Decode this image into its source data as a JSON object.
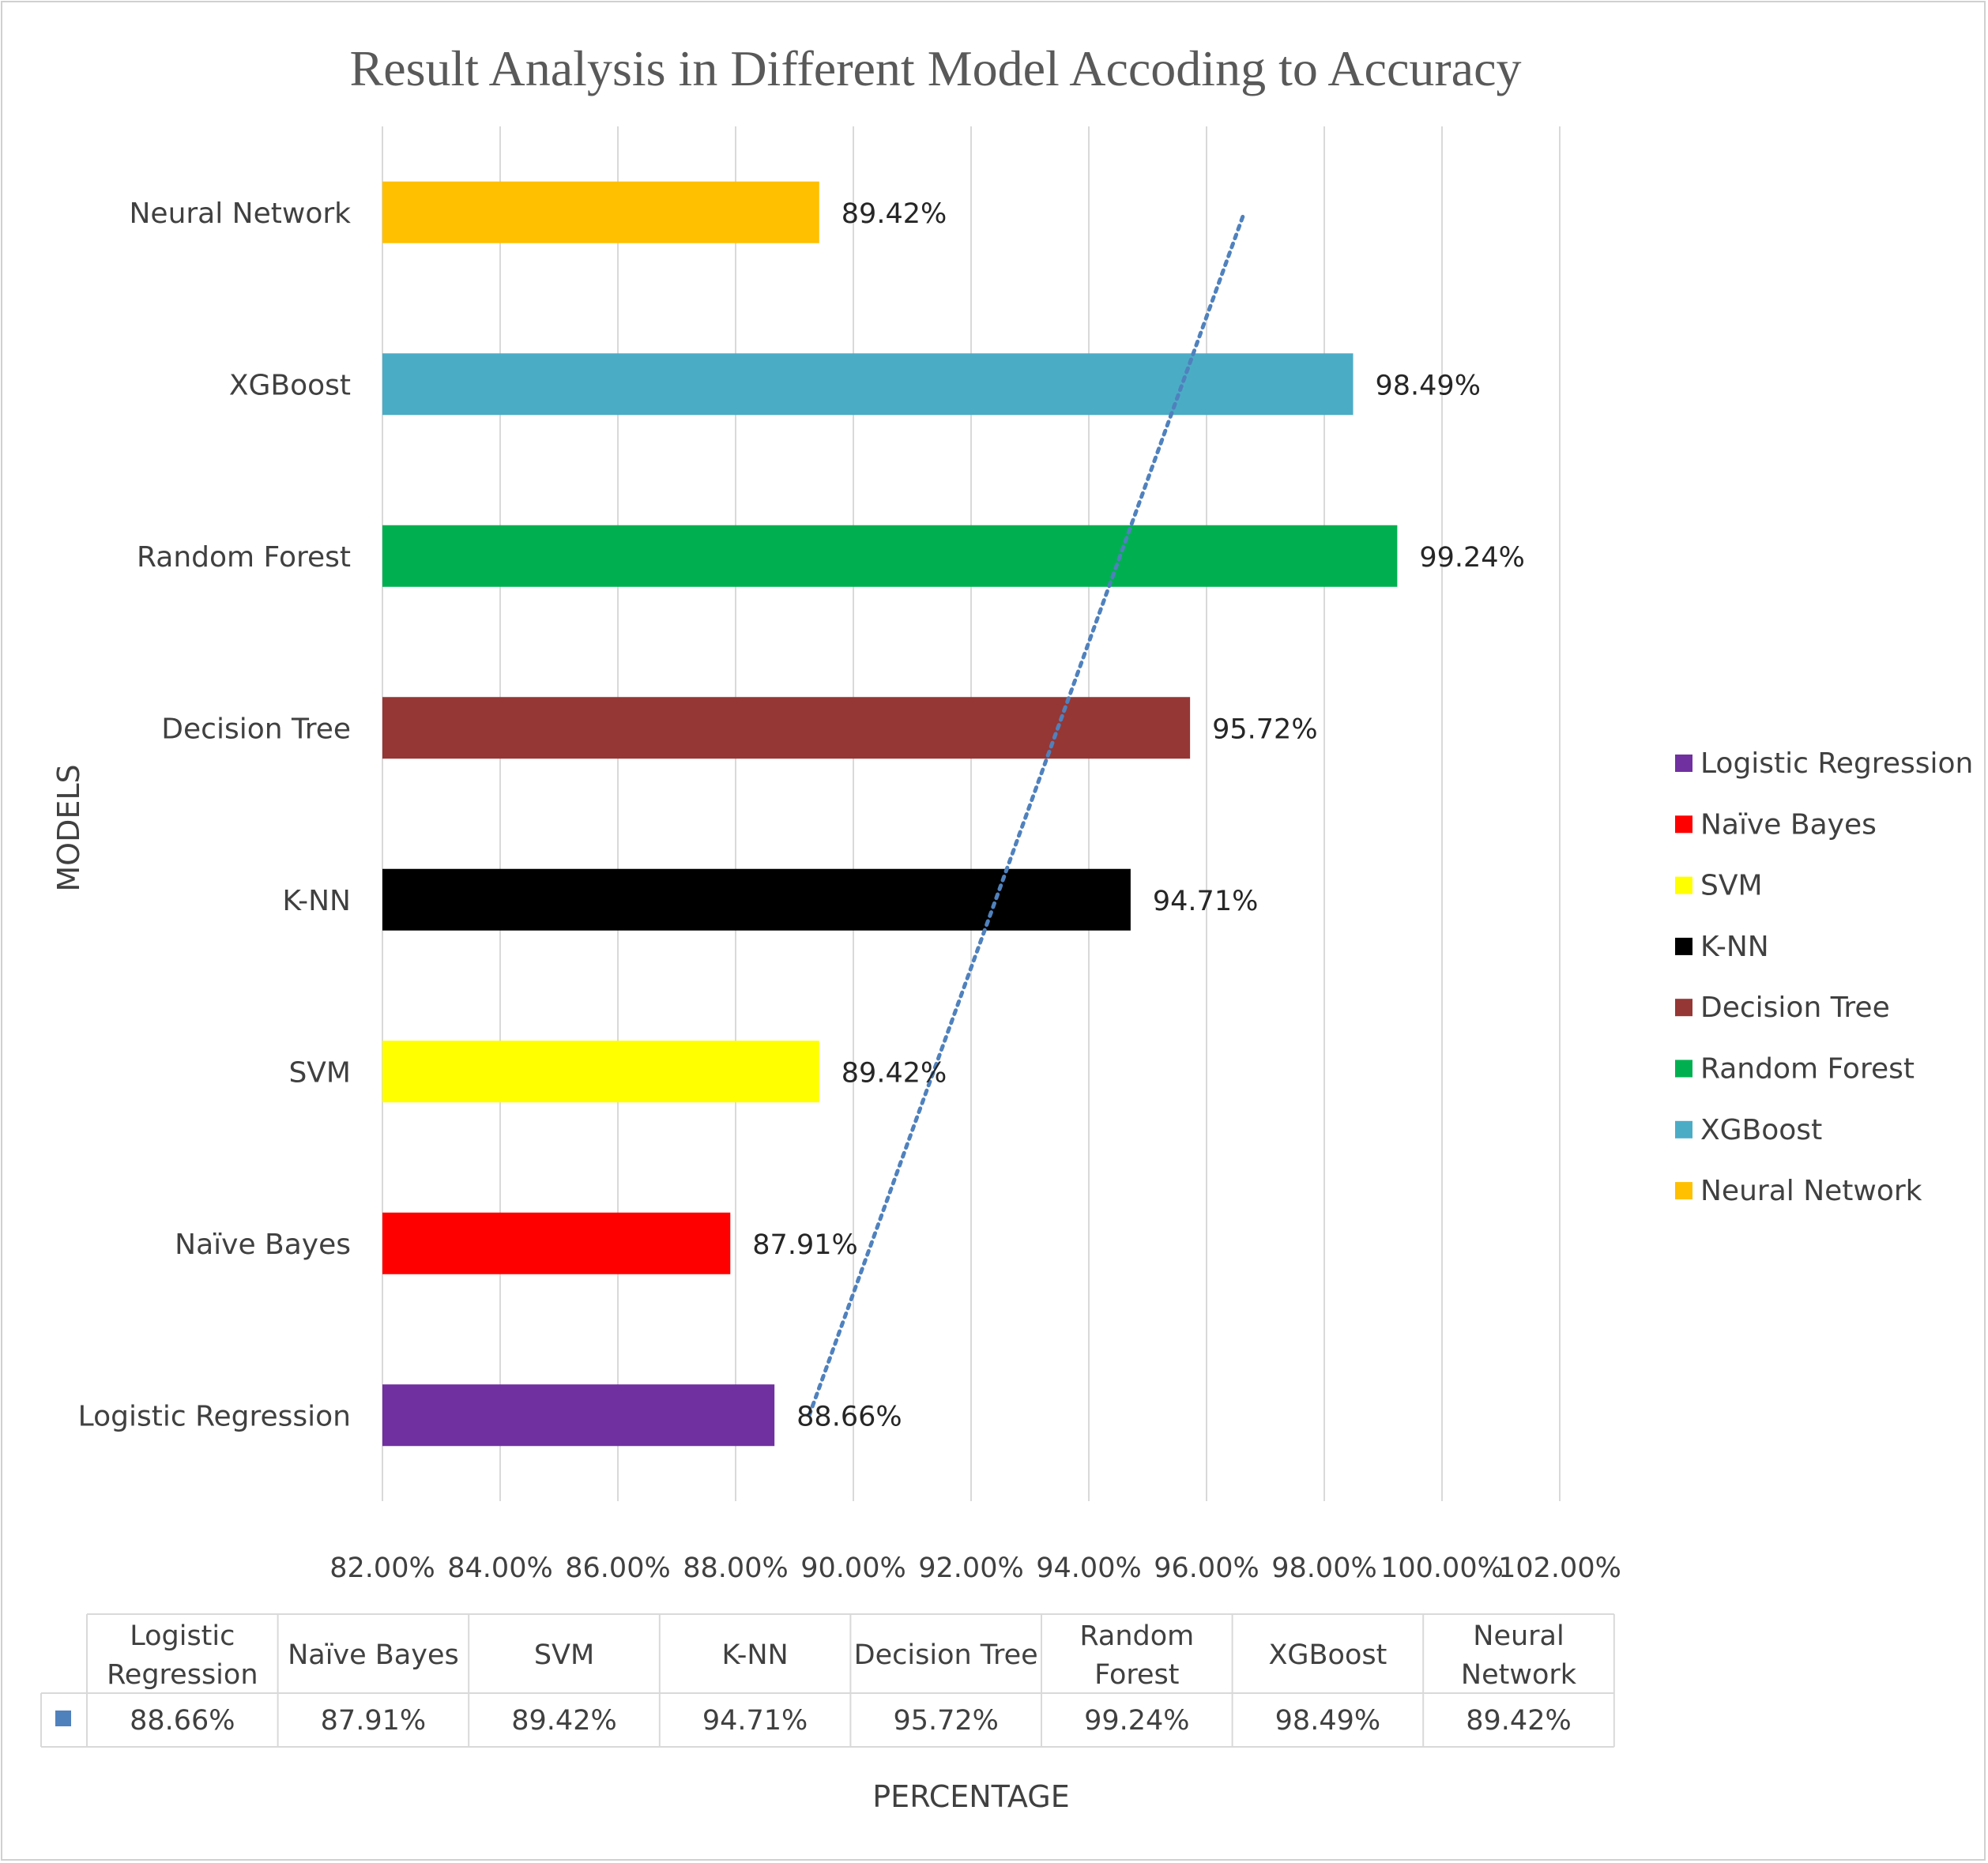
{
  "chart_data": {
    "type": "bar",
    "orientation": "horizontal",
    "title": "Result Analysis in Different Model Accoding to Accuracy",
    "xlabel": "PERCENTAGE",
    "ylabel": "MODELS",
    "xlim": [
      82,
      102
    ],
    "xticks": [
      82,
      84,
      86,
      88,
      90,
      92,
      94,
      96,
      98,
      100,
      102
    ],
    "tick_suffix": "%",
    "tick_decimals": 2,
    "grid": "vertical",
    "legend_position": "right",
    "categories": [
      "Logistic Regression",
      "Naïve Bayes",
      "SVM",
      "K-NN",
      "Decision Tree",
      "Random Forest",
      "XGBoost",
      "Neural Network"
    ],
    "values": [
      88.66,
      87.91,
      89.42,
      94.71,
      95.72,
      99.24,
      98.49,
      89.42
    ],
    "data_labels": [
      "88.66%",
      "87.91%",
      "89.42%",
      "94.71%",
      "95.72%",
      "99.24%",
      "98.49%",
      "89.42%"
    ],
    "colors": [
      "#7030a0",
      "#ff0000",
      "#ffff00",
      "#000000",
      "#953735",
      "#00b050",
      "#4bacc6",
      "#ffc000"
    ],
    "trendline": {
      "type": "linear",
      "style": "dotted",
      "color": "#4f81bd"
    },
    "data_table": {
      "headers": [
        [
          "Logistic",
          "Regression"
        ],
        [
          "Naïve Bayes"
        ],
        [
          "SVM"
        ],
        [
          "K-NN"
        ],
        [
          "Decision Tree"
        ],
        [
          "Random",
          "Forest"
        ],
        [
          "XGBoost"
        ],
        [
          "Neural",
          "Network"
        ]
      ],
      "row_key_color": "#4f81bd",
      "row": [
        "88.66%",
        "87.91%",
        "89.42%",
        "94.71%",
        "95.72%",
        "99.24%",
        "98.49%",
        "89.42%"
      ]
    }
  }
}
